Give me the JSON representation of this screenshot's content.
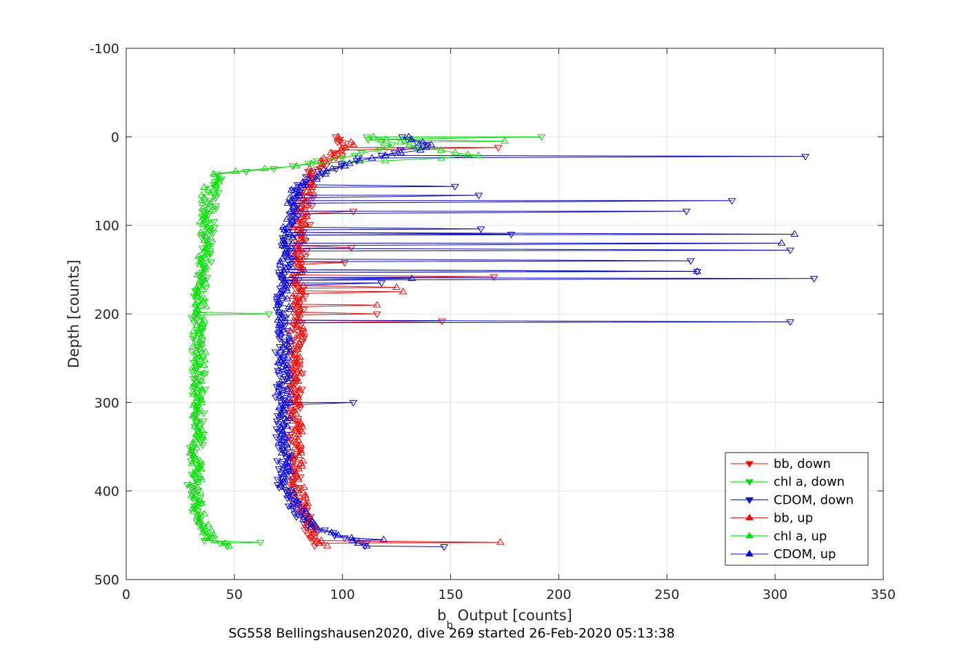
{
  "chart_data": {
    "type": "scatter",
    "xlabel_main": "b",
    "xlabel_sub": "b",
    "xlabel_rest": " Output [counts]",
    "ylabel": "Depth [counts]",
    "caption": "SG558 Bellingshausen2020, dive 269 started 26-Feb-2020 05:13:38",
    "xlim": [
      0,
      350
    ],
    "ylim": [
      -100,
      500
    ],
    "y_reversed": true,
    "grid": true,
    "legend_position": "bottom-right",
    "xticks": [
      "0",
      "50",
      "100",
      "150",
      "200",
      "250",
      "300",
      "350"
    ],
    "yticks": [
      "-100",
      "0",
      "100",
      "200",
      "300",
      "400",
      "500"
    ],
    "series": [
      {
        "name": "bb, down",
        "color": "#ff0000",
        "marker": "triangle-down",
        "profile": [
          [
            0,
            97
          ],
          [
            10,
            102
          ],
          [
            25,
            96
          ],
          [
            40,
            86
          ],
          [
            60,
            84
          ],
          [
            100,
            82
          ],
          [
            150,
            80
          ],
          [
            200,
            80
          ],
          [
            300,
            78
          ],
          [
            400,
            79
          ],
          [
            440,
            84
          ],
          [
            462,
            90
          ]
        ],
        "spikes": [
          [
            12,
            172
          ],
          [
            84,
            105
          ],
          [
            125,
            104
          ],
          [
            142,
            101
          ],
          [
            158,
            170
          ],
          [
            200,
            116
          ],
          [
            208,
            146
          ]
        ]
      },
      {
        "name": "chl a, down",
        "color": "#00e000",
        "marker": "triangle-down",
        "profile": [
          [
            0,
            110
          ],
          [
            10,
            125
          ],
          [
            25,
            96
          ],
          [
            35,
            70
          ],
          [
            42,
            44
          ],
          [
            60,
            40
          ],
          [
            100,
            38
          ],
          [
            150,
            36
          ],
          [
            200,
            33
          ],
          [
            300,
            34
          ],
          [
            400,
            31
          ],
          [
            430,
            33
          ],
          [
            455,
            38
          ],
          [
            462,
            46
          ]
        ],
        "spikes": [
          [
            0,
            192
          ],
          [
            200,
            66
          ],
          [
            458,
            62
          ]
        ]
      },
      {
        "name": "CDOM, down",
        "color": "#0000e0",
        "marker": "triangle-down",
        "profile": [
          [
            0,
            125
          ],
          [
            10,
            140
          ],
          [
            25,
            108
          ],
          [
            35,
            95
          ],
          [
            45,
            86
          ],
          [
            60,
            78
          ],
          [
            100,
            76
          ],
          [
            150,
            73
          ],
          [
            200,
            72
          ],
          [
            300,
            72
          ],
          [
            400,
            73
          ],
          [
            440,
            84
          ],
          [
            462,
            112
          ]
        ],
        "spikes": [
          [
            22,
            314
          ],
          [
            56,
            152
          ],
          [
            66,
            163
          ],
          [
            72,
            280
          ],
          [
            84,
            259
          ],
          [
            104,
            164
          ],
          [
            110,
            178
          ],
          [
            128,
            307
          ],
          [
            140,
            261
          ],
          [
            152,
            264
          ],
          [
            160,
            318
          ],
          [
            165,
            118
          ],
          [
            209,
            307
          ],
          [
            300,
            105
          ],
          [
            463,
            147
          ]
        ]
      },
      {
        "name": "bb, up",
        "color": "#ff0000",
        "marker": "triangle-up",
        "profile": [
          [
            0,
            100
          ],
          [
            10,
            104
          ],
          [
            25,
            92
          ],
          [
            40,
            85
          ],
          [
            60,
            83
          ],
          [
            100,
            80
          ],
          [
            150,
            79
          ],
          [
            200,
            79
          ],
          [
            300,
            78
          ],
          [
            400,
            80
          ],
          [
            440,
            85
          ],
          [
            462,
            91
          ]
        ],
        "spikes": [
          [
            170,
            125
          ],
          [
            175,
            128
          ],
          [
            190,
            116
          ],
          [
            458,
            173
          ]
        ]
      },
      {
        "name": "chl a, up",
        "color": "#00e000",
        "marker": "triangle-up",
        "profile": [
          [
            0,
            115
          ],
          [
            10,
            130
          ],
          [
            22,
            165
          ],
          [
            30,
            88
          ],
          [
            42,
            42
          ],
          [
            60,
            38
          ],
          [
            100,
            37
          ],
          [
            150,
            35
          ],
          [
            200,
            34
          ],
          [
            300,
            33
          ],
          [
            400,
            32
          ],
          [
            430,
            34
          ],
          [
            455,
            40
          ],
          [
            462,
            48
          ]
        ],
        "spikes": [
          [
            5,
            175
          ],
          [
            20,
            158
          ]
        ]
      },
      {
        "name": "CDOM, up",
        "color": "#0000e0",
        "marker": "triangle-up",
        "profile": [
          [
            0,
            130
          ],
          [
            10,
            145
          ],
          [
            25,
            110
          ],
          [
            35,
            96
          ],
          [
            45,
            87
          ],
          [
            60,
            79
          ],
          [
            100,
            75
          ],
          [
            150,
            74
          ],
          [
            200,
            73
          ],
          [
            300,
            73
          ],
          [
            400,
            74
          ],
          [
            440,
            85
          ],
          [
            462,
            114
          ]
        ],
        "spikes": [
          [
            110,
            309
          ],
          [
            120,
            303
          ],
          [
            152,
            264
          ],
          [
            160,
            132
          ],
          [
            455,
            119
          ]
        ]
      }
    ]
  }
}
